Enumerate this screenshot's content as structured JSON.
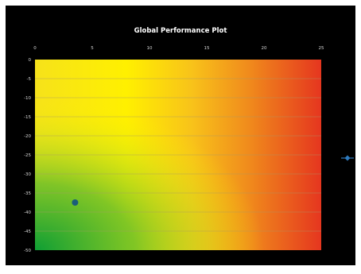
{
  "chart_data": {
    "type": "scatter",
    "title": "Global Performance Plot",
    "xlabel": "",
    "ylabel": "",
    "x_ticks": [
      0,
      5,
      10,
      15,
      20,
      25
    ],
    "y_ticks": [
      0,
      -5,
      -10,
      -15,
      -20,
      -25,
      -30,
      -35,
      -40,
      -45,
      -50
    ],
    "xlim": [
      0,
      25
    ],
    "ylim": [
      -50,
      0
    ],
    "x_axis_position": "top",
    "grid": "horizontal",
    "background_gradient": "green at lower-left to yellow to orange to red at right",
    "legend_position": "right",
    "series": [
      {
        "color": "#1a5e7a",
        "points": [
          {
            "x": 3.5,
            "y": -37.5
          }
        ]
      }
    ],
    "colors": {
      "frame": "#000000",
      "grid": "#a89a6a",
      "marker": "#1a5e7a",
      "legend_marker": "#2e7bbf",
      "gradient_green": "#0e9e34",
      "gradient_yellow": "#fff200",
      "gradient_orange": "#f4a21a",
      "gradient_red": "#e53a1e"
    }
  }
}
